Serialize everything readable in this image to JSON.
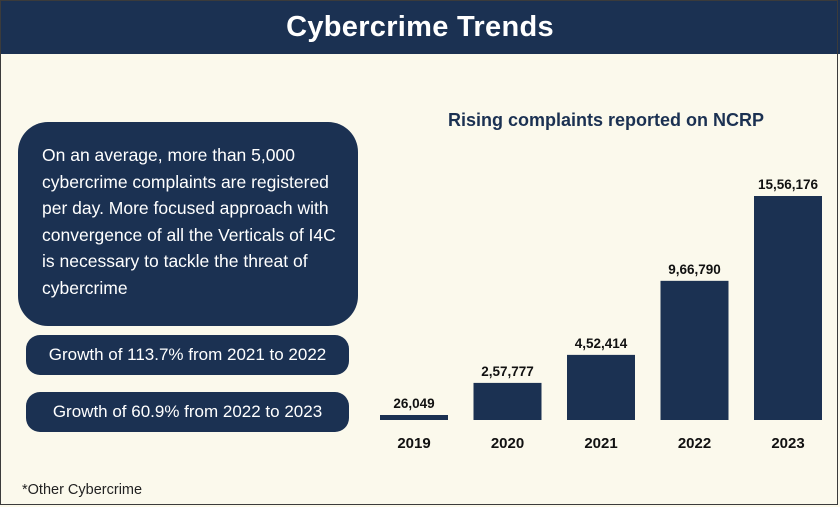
{
  "header": {
    "title": "Cybercrime Trends"
  },
  "summary": {
    "text": "On an average, more than 5,000 cybercrime complaints are registered per day. More focused approach with convergence of all the Verticals of I4C is necessary to tackle the threat of cybercrime"
  },
  "growth": [
    "Growth of 113.7% from 2021 to 2022",
    "Growth of 60.9% from 2022 to 2023"
  ],
  "footnote": "*Other Cybercrime",
  "colors": {
    "navy": "#1b3152",
    "background": "#fbf9ec"
  },
  "chart_data": {
    "type": "bar",
    "title": "Rising complaints reported on NCRP",
    "xlabel": "",
    "ylabel": "",
    "categories": [
      "2019",
      "2020",
      "2021",
      "2022",
      "2023"
    ],
    "values": [
      26049,
      257777,
      452414,
      966790,
      1556176
    ],
    "labels": [
      "26,049",
      "2,57,777",
      "4,52,414",
      "9,66,790",
      "15,56,176"
    ],
    "ylim": [
      0,
      1556176
    ],
    "grid": false,
    "legend": "none"
  }
}
